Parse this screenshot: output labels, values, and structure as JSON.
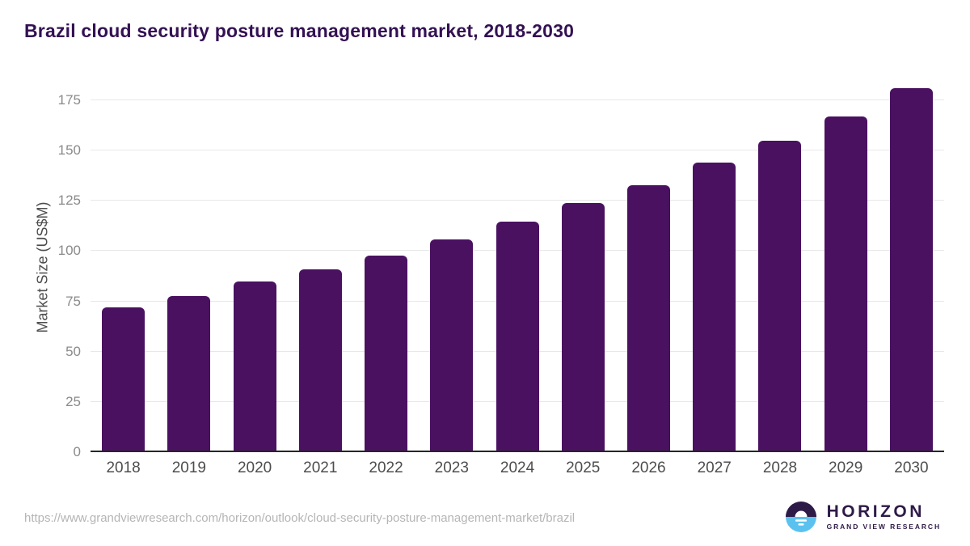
{
  "header": {
    "title": "Brazil cloud security posture management market, 2018-2030"
  },
  "chart_data": {
    "type": "bar",
    "title": "Brazil cloud security posture management market, 2018-2030",
    "categories": [
      "2018",
      "2019",
      "2020",
      "2021",
      "2022",
      "2023",
      "2024",
      "2025",
      "2026",
      "2027",
      "2028",
      "2029",
      "2030"
    ],
    "values": [
      71,
      77,
      84,
      90,
      97,
      105,
      114,
      123,
      132,
      143,
      154,
      166,
      180
    ],
    "xlabel": "",
    "ylabel": "Market Size (US$M)",
    "ylim": [
      0,
      185
    ],
    "yticks": [
      0,
      25,
      50,
      75,
      100,
      125,
      150,
      175
    ],
    "grid": true,
    "legend": false,
    "bar_color": "#4a1161"
  },
  "colors": {
    "title": "#331153",
    "bar": "#4a1161",
    "gridline": "#e8e8e8",
    "axis_line": "#262626",
    "y_tick_text": "#8a8a8a",
    "x_tick_text": "#4d4d4d",
    "url_text": "#b5b5b5",
    "logo_dark": "#2e1a47",
    "logo_blue": "#5bc2f0"
  },
  "footer": {
    "source_url": "https://www.grandviewresearch.com/horizon/outlook/cloud-security-posture-management-market/brazil",
    "logo": {
      "name": "HORIZON",
      "subtitle": "GRAND VIEW RESEARCH"
    }
  }
}
